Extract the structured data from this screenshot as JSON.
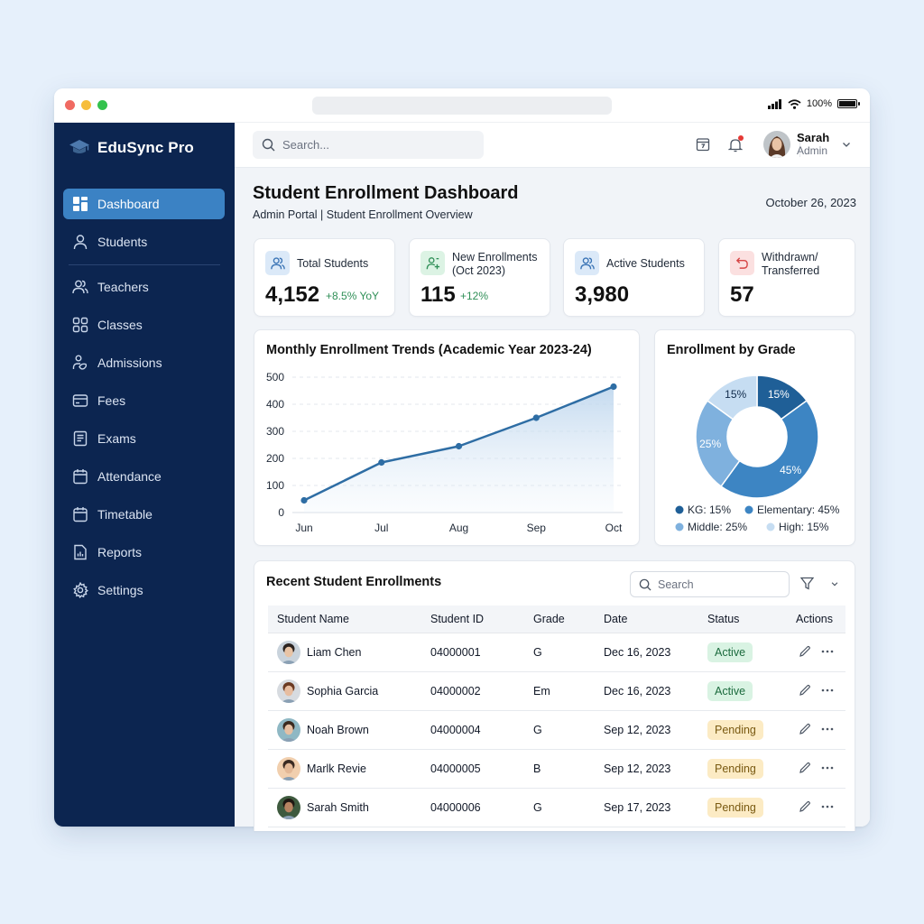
{
  "window": {
    "status_bar": {
      "battery": "100%"
    }
  },
  "sidebar": {
    "brand": "EduSync Pro",
    "items": [
      {
        "label": "Dashboard",
        "icon": "dashboard-icon",
        "active": true
      },
      {
        "label": "Students",
        "icon": "user-icon"
      },
      {
        "label": "Teachers",
        "icon": "users-icon"
      },
      {
        "label": "Classes",
        "icon": "grid-icon"
      },
      {
        "label": "Admissions",
        "icon": "admissions-icon"
      },
      {
        "label": "Fees",
        "icon": "credit-card-icon"
      },
      {
        "label": "Exams",
        "icon": "exam-sheet-icon"
      },
      {
        "label": "Attendance",
        "icon": "calendar-icon"
      },
      {
        "label": "Timetable",
        "icon": "calendar-icon"
      },
      {
        "label": "Reports",
        "icon": "report-icon"
      },
      {
        "label": "Settings",
        "icon": "gear-icon"
      }
    ]
  },
  "topbar": {
    "search_placeholder": "Search...",
    "user": {
      "name": "Sarah",
      "role": "Admin"
    }
  },
  "page": {
    "title": "Student Enrollment Dashboard",
    "subtitle": "Admin Portal | Student Enrollment Overview",
    "date": "October 26, 2023"
  },
  "kpis": [
    {
      "label": "Total Students",
      "value": "4,152",
      "delta": "+8.5% YoY",
      "icon": "users-icon",
      "tint": "#dbe9f8",
      "stroke": "#3a74b5"
    },
    {
      "label": "New Enrollments",
      "label2": "(Oct 2023)",
      "value": "115",
      "delta": "+12%",
      "icon": "user-plus-icon",
      "tint": "#dcf3e4",
      "stroke": "#2f8f57"
    },
    {
      "label": "Active Students",
      "value": "3,980",
      "delta": "",
      "icon": "users-icon",
      "tint": "#dbe9f8",
      "stroke": "#3a74b5"
    },
    {
      "label": "Withdrawn/",
      "label2": "Transferred",
      "value": "57",
      "delta": "",
      "icon": "undo-icon",
      "tint": "#fbe0e0",
      "stroke": "#d64545"
    }
  ],
  "chart_data": [
    {
      "type": "area",
      "title": "Monthly Enrollment Trends (Academic Year 2023-24)",
      "categories": [
        "Jun",
        "Jul",
        "Aug",
        "Sep",
        "Oct"
      ],
      "values": [
        45,
        185,
        245,
        350,
        465
      ],
      "xlabel": "",
      "ylabel": "",
      "ylim": [
        0,
        500
      ],
      "yticks": [
        0,
        100,
        200,
        300,
        400,
        500
      ],
      "grid": true,
      "line_color": "#2e6da4"
    },
    {
      "type": "pie",
      "title": "Enrollment by Grade",
      "donut": true,
      "categories": [
        "KG",
        "Elementary",
        "Middle",
        "High"
      ],
      "values": [
        15,
        45,
        25,
        15
      ],
      "slice_labels": [
        "15%",
        "45%",
        "25%",
        "15%"
      ],
      "colors": [
        "#1f5f97",
        "#3d85c3",
        "#7fb1de",
        "#c6ddf2"
      ],
      "legend": [
        "KG: 15%",
        "Elementary: 45%",
        "Middle: 25%",
        "High: 15%"
      ],
      "legend_position": "bottom"
    }
  ],
  "table": {
    "title": "Recent Student Enrollments",
    "search_placeholder": "Search",
    "columns": [
      "Student Name",
      "Student ID",
      "Grade",
      "Date",
      "Status",
      "Actions"
    ],
    "rows": [
      {
        "name": "Liam Chen",
        "id": "04000001",
        "grade": "G",
        "date": "Dec 16, 2023",
        "status": "Active",
        "avatar_bg": "#c9d3dc",
        "skin": "#e8c4a6",
        "hair": "#2b2320"
      },
      {
        "name": "Sophia Garcia",
        "id": "04000002",
        "grade": "Em",
        "date": "Dec 16, 2023",
        "status": "Active",
        "avatar_bg": "#d7dbe0",
        "skin": "#e7bda0",
        "hair": "#6b3a22"
      },
      {
        "name": "Noah Brown",
        "id": "04000004",
        "grade": "G",
        "date": "Sep 12, 2023",
        "status": "Pending",
        "avatar_bg": "#8fb8c4",
        "skin": "#e6c0a3",
        "hair": "#3b2a1f"
      },
      {
        "name": "Marlk Revie",
        "id": "04000005",
        "grade": "B",
        "date": "Sep 12, 2023",
        "status": "Pending",
        "avatar_bg": "#f1cfae",
        "skin": "#e3b896",
        "hair": "#3a2a22"
      },
      {
        "name": "Sarah Smith",
        "id": "04000006",
        "grade": "G",
        "date": "Sep 17, 2023",
        "status": "Pending",
        "avatar_bg": "#3e5a3e",
        "skin": "#b88462",
        "hair": "#1f1712"
      }
    ]
  }
}
